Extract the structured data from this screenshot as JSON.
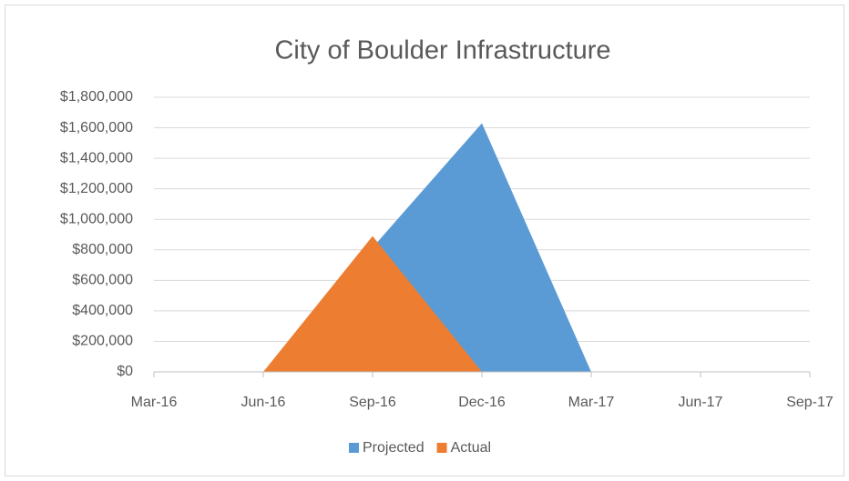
{
  "chart_data": {
    "type": "area",
    "title": "City of Boulder Infrastructure",
    "x": [
      "Jun-16",
      "Sep-16",
      "Dec-16",
      "Mar-17"
    ],
    "xticks": [
      "Mar-16",
      "Jun-16",
      "Sep-16",
      "Dec-16",
      "Mar-17",
      "Jun-17",
      "Sep-17"
    ],
    "series": [
      {
        "name": "Projected",
        "color": "#5b9bd5",
        "values": [
          0,
          815000,
          1630000,
          0
        ]
      },
      {
        "name": "Actual",
        "color": "#ed7d31",
        "values": [
          0,
          890000,
          0,
          0
        ]
      }
    ],
    "ylim": [
      0,
      1800000
    ],
    "yticks": [
      {
        "value": 0,
        "label": "$0"
      },
      {
        "value": 200000,
        "label": "$200,000"
      },
      {
        "value": 400000,
        "label": "$400,000"
      },
      {
        "value": 600000,
        "label": "$600,000"
      },
      {
        "value": 800000,
        "label": "$800,000"
      },
      {
        "value": 1000000,
        "label": "$1,000,000"
      },
      {
        "value": 1200000,
        "label": "$1,200,000"
      },
      {
        "value": 1400000,
        "label": "$1,400,000"
      },
      {
        "value": 1600000,
        "label": "$1,600,000"
      },
      {
        "value": 1800000,
        "label": "$1,800,000"
      }
    ],
    "grid": true,
    "legend": "bottom"
  }
}
